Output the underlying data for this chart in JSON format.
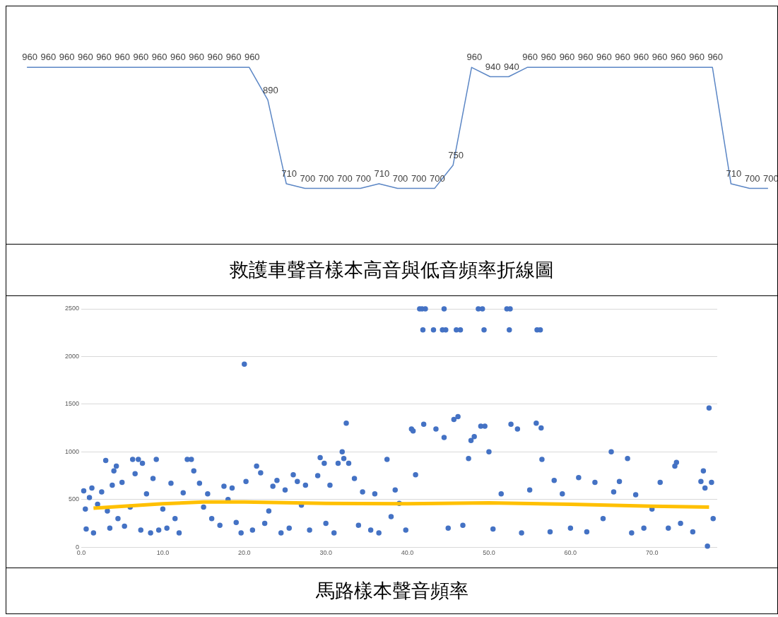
{
  "chart_data": [
    {
      "type": "line",
      "title": "救護車聲音樣本高音與低音頻率折線圖",
      "categories": [
        null,
        null,
        null,
        null,
        null,
        null,
        null,
        null,
        null,
        null,
        null,
        null,
        null,
        null,
        null,
        null,
        null,
        null,
        null,
        null,
        null,
        null,
        null,
        null,
        null,
        null,
        null,
        null,
        null,
        null,
        null,
        null,
        null,
        null,
        null,
        null,
        null,
        null,
        null,
        null,
        null
      ],
      "series": [
        {
          "color": "#5b86c5",
          "values": [
            960,
            960,
            960,
            960,
            960,
            960,
            960,
            960,
            960,
            960,
            960,
            960,
            960,
            890,
            710,
            700,
            700,
            700,
            700,
            710,
            700,
            700,
            700,
            750,
            960,
            940,
            940,
            960,
            960,
            960,
            960,
            960,
            960,
            960,
            960,
            960,
            960,
            960,
            710,
            700,
            700
          ]
        }
      ],
      "data_labels": true,
      "marker": "none"
    },
    {
      "type": "scatter",
      "title": "馬路樣本聲音頻率",
      "xlim": [
        0,
        78
      ],
      "xticks": [
        {
          "value": 0,
          "label": "0.0"
        },
        {
          "value": 10,
          "label": "10.0"
        },
        {
          "value": 20,
          "label": "20.0"
        },
        {
          "value": 30,
          "label": "30.0"
        },
        {
          "value": 40,
          "label": "40.0"
        },
        {
          "value": 50,
          "label": "50.0"
        },
        {
          "value": 60,
          "label": "60.0"
        },
        {
          "value": 70,
          "label": "70.0"
        }
      ],
      "ylim": [
        0,
        2500
      ],
      "yticks": [
        0,
        500,
        1000,
        1500,
        2000,
        2500
      ],
      "grid": "y",
      "series": [
        {
          "type": "scatter",
          "marker": "circle",
          "color": "#4472c4",
          "x": [
            0.3,
            0.5,
            0.6,
            1.0,
            1.3,
            1.5,
            2.0,
            2.5,
            3.0,
            3.2,
            3.5,
            3.8,
            4.0,
            4.3,
            4.5,
            5.0,
            5.3,
            6.0,
            6.3,
            6.6,
            7.0,
            7.3,
            7.5,
            8.0,
            8.5,
            8.8,
            9.2,
            9.5,
            10.0,
            10.5,
            11.0,
            11.5,
            12.0,
            12.5,
            13.0,
            13.5,
            13.8,
            14.5,
            15.0,
            15.5,
            16.0,
            17.0,
            17.5,
            18.0,
            18.5,
            19.0,
            19.6,
            20.0,
            20.2,
            21.0,
            21.5,
            22.0,
            22.5,
            23.0,
            23.5,
            24.0,
            24.5,
            25.0,
            25.5,
            26.0,
            26.5,
            27.0,
            27.5,
            28.0,
            29.0,
            29.3,
            29.8,
            30.0,
            30.5,
            31.0,
            31.5,
            32.0,
            32.2,
            32.5,
            32.8,
            33.5,
            34.0,
            34.5,
            35.5,
            36.0,
            36.5,
            37.5,
            38.0,
            38.5,
            39.0,
            39.8,
            40.5,
            40.7,
            41.0,
            41.5,
            41.8,
            41.9,
            42.0,
            42.2,
            43.2,
            43.5,
            44.3,
            44.5,
            44.5,
            44.7,
            45.0,
            45.7,
            46.0,
            46.2,
            46.5,
            46.8,
            47.5,
            47.8,
            48.2,
            48.7,
            49.0,
            49.2,
            49.4,
            49.5,
            50.0,
            50.5,
            51.5,
            52.2,
            52.5,
            52.6,
            52.7,
            53.5,
            54.0,
            55.0,
            55.8,
            55.9,
            56.3,
            56.4,
            56.5,
            57.5,
            58.0,
            59.0,
            60.0,
            61.0,
            62.0,
            63.0,
            64.0,
            65.0,
            65.3,
            66.0,
            67.0,
            67.5,
            68.0,
            69.0,
            70.0,
            71.0,
            72.0,
            72.8,
            73.0,
            73.5,
            75.0,
            76.0,
            76.3,
            76.5,
            76.8,
            77.0,
            77.3,
            77.5
          ],
          "values": [
            590,
            400,
            190,
            520,
            620,
            150,
            450,
            580,
            910,
            380,
            200,
            650,
            800,
            850,
            300,
            680,
            220,
            420,
            920,
            770,
            920,
            180,
            880,
            560,
            150,
            720,
            920,
            180,
            400,
            200,
            670,
            300,
            150,
            570,
            920,
            920,
            800,
            670,
            420,
            560,
            300,
            230,
            640,
            500,
            620,
            260,
            150,
            1920,
            690,
            180,
            850,
            780,
            250,
            380,
            640,
            700,
            150,
            600,
            200,
            760,
            690,
            440,
            650,
            180,
            750,
            940,
            880,
            250,
            650,
            150,
            880,
            1000,
            930,
            1300,
            880,
            720,
            230,
            580,
            180,
            560,
            150,
            920,
            320,
            600,
            460,
            180,
            1240,
            1220,
            760,
            2500,
            2500,
            2280,
            1290,
            2500,
            2280,
            1240,
            2280,
            2500,
            1150,
            2280,
            200,
            1340,
            2280,
            1370,
            2280,
            230,
            930,
            1120,
            1160,
            2500,
            1270,
            2500,
            2280,
            1270,
            1000,
            190,
            560,
            2500,
            2280,
            2500,
            1290,
            1240,
            150,
            600,
            1300,
            2280,
            2280,
            1250,
            920,
            160,
            700,
            560,
            200,
            730,
            160,
            680,
            300,
            1000,
            580,
            690,
            930,
            150,
            550,
            200,
            400,
            680,
            200,
            850,
            890,
            250,
            160,
            690,
            800,
            620,
            10,
            1460,
            680,
            300
          ]
        },
        {
          "type": "line",
          "marker": "none",
          "color": "#ffc000",
          "x": [
            1.5,
            10,
            15,
            20,
            30,
            40,
            50,
            60,
            70,
            77
          ],
          "values": [
            410,
            455,
            475,
            475,
            460,
            455,
            465,
            450,
            430,
            420
          ]
        }
      ]
    }
  ]
}
